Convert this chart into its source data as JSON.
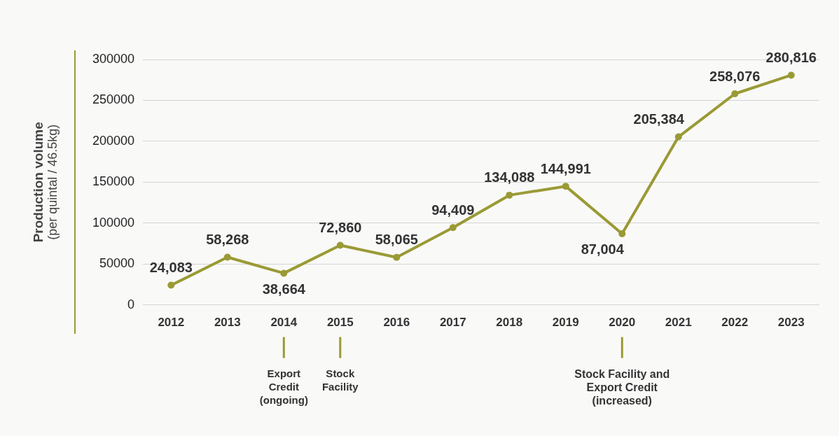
{
  "chart_data": {
    "type": "line",
    "ylabel": "Production volume (per quintal / 46.5kg)",
    "categories": [
      "2012",
      "2013",
      "2014",
      "2015",
      "2016",
      "2017",
      "2018",
      "2019",
      "2020",
      "2021",
      "2022",
      "2023"
    ],
    "series": [
      {
        "color": "#9a9a35",
        "values": [
          24083,
          58268,
          38664,
          72860,
          58065,
          94409,
          134088,
          144991,
          87004,
          205384,
          258076,
          280816
        ]
      }
    ],
    "ylim": [
      0,
      300000
    ],
    "yticks": [
      0,
      50000,
      100000,
      150000,
      200000,
      250000,
      300000
    ],
    "value_labels": [
      "24,083",
      "58,268",
      "38,664",
      "72,860",
      "58,065",
      "94,409",
      "134,088",
      "144,991",
      "87,004",
      "205,384",
      "258,076",
      "280,816"
    ],
    "grid": "y",
    "legend": false,
    "marker": "circle",
    "line_style": "solid",
    "annotations": [
      {
        "text": "Export Credit (ongoing)",
        "x": "2014"
      },
      {
        "text": "Stock Facility",
        "x": "2015"
      },
      {
        "text": "Stock Facility and Export Credit (increased)",
        "x": "2020"
      }
    ]
  }
}
